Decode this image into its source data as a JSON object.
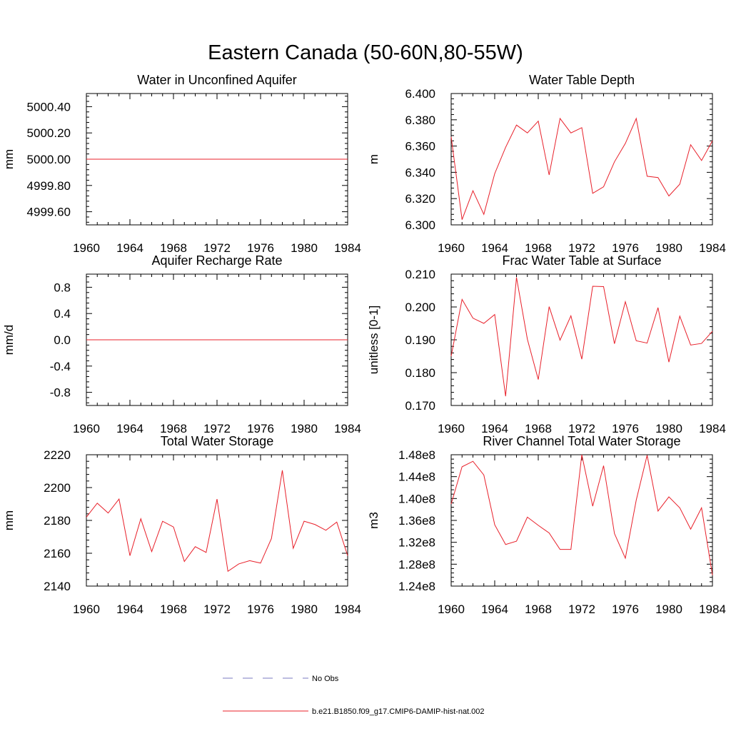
{
  "figure": {
    "title": "Eastern Canada (50-60N,80-55W)"
  },
  "legend": {
    "items": [
      {
        "label": "No Obs",
        "color": "#7b7bc0",
        "dash": "dashed"
      },
      {
        "label": "b.e21.B1850.f09_g17.CMIP6-DAMIP-hist-nat.002",
        "color": "#e8202a",
        "dash": "solid"
      }
    ]
  },
  "chart_data": [
    {
      "type": "line",
      "title": "Water in Unconfined Aquifer",
      "ylabel": "mm",
      "xlim": [
        1960,
        1984
      ],
      "ylim": [
        4999.5,
        5000.5
      ],
      "xticks": [
        1960,
        1964,
        1968,
        1972,
        1976,
        1980,
        1984
      ],
      "xticklabels": [
        "1960",
        "1964",
        "1968",
        "1972",
        "1976",
        "1980",
        "1984"
      ],
      "yticks": [
        4999.6,
        4999.8,
        5000.0,
        5000.2,
        5000.4
      ],
      "yticklabels": [
        "4999.60",
        "4999.80",
        "5000.00",
        "5000.20",
        "5000.40"
      ],
      "series": [
        {
          "color": "#e8202a",
          "x": [
            1960,
            1961,
            1962,
            1963,
            1964,
            1965,
            1966,
            1967,
            1968,
            1969,
            1970,
            1971,
            1972,
            1973,
            1974,
            1975,
            1976,
            1977,
            1978,
            1979,
            1980,
            1981,
            1982,
            1983,
            1984
          ],
          "y": [
            5000,
            5000,
            5000,
            5000,
            5000,
            5000,
            5000,
            5000,
            5000,
            5000,
            5000,
            5000,
            5000,
            5000,
            5000,
            5000,
            5000,
            5000,
            5000,
            5000,
            5000,
            5000,
            5000,
            5000,
            5000
          ]
        }
      ]
    },
    {
      "type": "line",
      "title": "Water Table Depth",
      "ylabel": "m",
      "xlim": [
        1960,
        1984
      ],
      "ylim": [
        6.3,
        6.4
      ],
      "xticks": [
        1960,
        1964,
        1968,
        1972,
        1976,
        1980,
        1984
      ],
      "xticklabels": [
        "1960",
        "1964",
        "1968",
        "1972",
        "1976",
        "1980",
        "1984"
      ],
      "yticks": [
        6.3,
        6.32,
        6.34,
        6.36,
        6.38,
        6.4
      ],
      "yticklabels": [
        "6.300",
        "6.320",
        "6.340",
        "6.360",
        "6.380",
        "6.400"
      ],
      "series": [
        {
          "color": "#e8202a",
          "x": [
            1960,
            1961,
            1962,
            1963,
            1964,
            1965,
            1966,
            1967,
            1968,
            1969,
            1970,
            1971,
            1972,
            1973,
            1974,
            1975,
            1976,
            1977,
            1978,
            1979,
            1980,
            1981,
            1982,
            1983,
            1984
          ],
          "y": [
            6.367,
            6.304,
            6.326,
            6.308,
            6.339,
            6.359,
            6.376,
            6.37,
            6.379,
            6.338,
            6.381,
            6.37,
            6.374,
            6.324,
            6.329,
            6.348,
            6.362,
            6.381,
            6.337,
            6.336,
            6.322,
            6.331,
            6.361,
            6.349,
            6.364
          ]
        }
      ]
    },
    {
      "type": "line",
      "title": "Aquifer Recharge Rate",
      "ylabel": "mm/d",
      "xlim": [
        1960,
        1984
      ],
      "ylim": [
        -1.0,
        1.0
      ],
      "xticks": [
        1960,
        1964,
        1968,
        1972,
        1976,
        1980,
        1984
      ],
      "xticklabels": [
        "1960",
        "1964",
        "1968",
        "1972",
        "1976",
        "1980",
        "1984"
      ],
      "yticks": [
        -0.8,
        -0.4,
        0.0,
        0.4,
        0.8
      ],
      "yticklabels": [
        "-0.8",
        "-0.4",
        "0.0",
        "0.4",
        "0.8"
      ],
      "series": [
        {
          "color": "#e8202a",
          "x": [
            1960,
            1961,
            1962,
            1963,
            1964,
            1965,
            1966,
            1967,
            1968,
            1969,
            1970,
            1971,
            1972,
            1973,
            1974,
            1975,
            1976,
            1977,
            1978,
            1979,
            1980,
            1981,
            1982,
            1983,
            1984
          ],
          "y": [
            0,
            0,
            0,
            0,
            0,
            0,
            0,
            0,
            0,
            0,
            0,
            0,
            0,
            0,
            0,
            0,
            0,
            0,
            0,
            0,
            0,
            0,
            0,
            0,
            0
          ]
        }
      ]
    },
    {
      "type": "line",
      "title": "Frac Water Table at Surface",
      "ylabel": "unitless [0-1]",
      "xlim": [
        1960,
        1984
      ],
      "ylim": [
        0.17,
        0.21
      ],
      "xticks": [
        1960,
        1964,
        1968,
        1972,
        1976,
        1980,
        1984
      ],
      "xticklabels": [
        "1960",
        "1964",
        "1968",
        "1972",
        "1976",
        "1980",
        "1984"
      ],
      "yticks": [
        0.17,
        0.18,
        0.19,
        0.2,
        0.21
      ],
      "yticklabels": [
        "0.170",
        "0.180",
        "0.190",
        "0.200",
        "0.210"
      ],
      "series": [
        {
          "color": "#e8202a",
          "x": [
            1960,
            1961,
            1962,
            1963,
            1964,
            1965,
            1966,
            1967,
            1968,
            1969,
            1970,
            1971,
            1972,
            1973,
            1974,
            1975,
            1976,
            1977,
            1978,
            1979,
            1980,
            1981,
            1982,
            1983,
            1984
          ],
          "y": [
            0.185,
            0.2023,
            0.1966,
            0.195,
            0.1977,
            0.1728,
            0.209,
            0.1902,
            0.1779,
            0.2001,
            0.1899,
            0.1973,
            0.1841,
            0.2063,
            0.2062,
            0.1888,
            0.2016,
            0.1897,
            0.189,
            0.1998,
            0.1832,
            0.1972,
            0.1884,
            0.1889,
            0.1926
          ]
        }
      ]
    },
    {
      "type": "line",
      "title": "Total Water Storage",
      "ylabel": "mm",
      "xlim": [
        1960,
        1984
      ],
      "ylim": [
        2140,
        2220
      ],
      "xticks": [
        1960,
        1964,
        1968,
        1972,
        1976,
        1980,
        1984
      ],
      "xticklabels": [
        "1960",
        "1964",
        "1968",
        "1972",
        "1976",
        "1980",
        "1984"
      ],
      "yticks": [
        2140,
        2160,
        2180,
        2200,
        2220
      ],
      "yticklabels": [
        "2140",
        "2160",
        "2180",
        "2200",
        "2220"
      ],
      "series": [
        {
          "color": "#e8202a",
          "x": [
            1960,
            1961,
            1962,
            1963,
            1964,
            1965,
            1966,
            1967,
            1968,
            1969,
            1970,
            1971,
            1972,
            1973,
            1974,
            1975,
            1976,
            1977,
            1978,
            1979,
            1980,
            1981,
            1982,
            1983,
            1984
          ],
          "y": [
            2182,
            2190.5,
            2184.5,
            2193,
            2158.5,
            2181,
            2161,
            2179.5,
            2176,
            2155,
            2164,
            2160.5,
            2193,
            2149,
            2153.5,
            2155.5,
            2154,
            2169,
            2210.5,
            2163,
            2179.5,
            2177.5,
            2174,
            2179,
            2158.5
          ]
        }
      ]
    },
    {
      "type": "line",
      "title": "River Channel Total Water Storage",
      "ylabel": "m3",
      "xlim": [
        1960,
        1984
      ],
      "ylim": [
        124000000.0,
        148000000.0
      ],
      "xticks": [
        1960,
        1964,
        1968,
        1972,
        1976,
        1980,
        1984
      ],
      "xticklabels": [
        "1960",
        "1964",
        "1968",
        "1972",
        "1976",
        "1980",
        "1984"
      ],
      "yticks": [
        124000000.0,
        128000000.0,
        132000000.0,
        136000000.0,
        140000000.0,
        144000000.0,
        148000000.0
      ],
      "yticklabels": [
        "1.24e8",
        "1.28e8",
        "1.32e8",
        "1.36e8",
        "1.40e8",
        "1.44e8",
        "1.48e8"
      ],
      "series": [
        {
          "color": "#e8202a",
          "x": [
            1960,
            1961,
            1962,
            1963,
            1964,
            1965,
            1966,
            1967,
            1968,
            1969,
            1970,
            1971,
            1972,
            1973,
            1974,
            1975,
            1976,
            1977,
            1978,
            1979,
            1980,
            1981,
            1982,
            1983,
            1984
          ],
          "y": [
            139000000.0,
            145800000.0,
            146800000.0,
            144300000.0,
            135200000.0,
            131600000.0,
            132200000.0,
            136600000.0,
            135100000.0,
            133700000.0,
            130700000.0,
            130700000.0,
            148000000.0,
            138600000.0,
            146000000.0,
            133600000.0,
            129100000.0,
            139700000.0,
            147900000.0,
            137700000.0,
            140300000.0,
            138300000.0,
            134400000.0,
            138300000.0,
            126000000.0
          ]
        }
      ]
    }
  ]
}
